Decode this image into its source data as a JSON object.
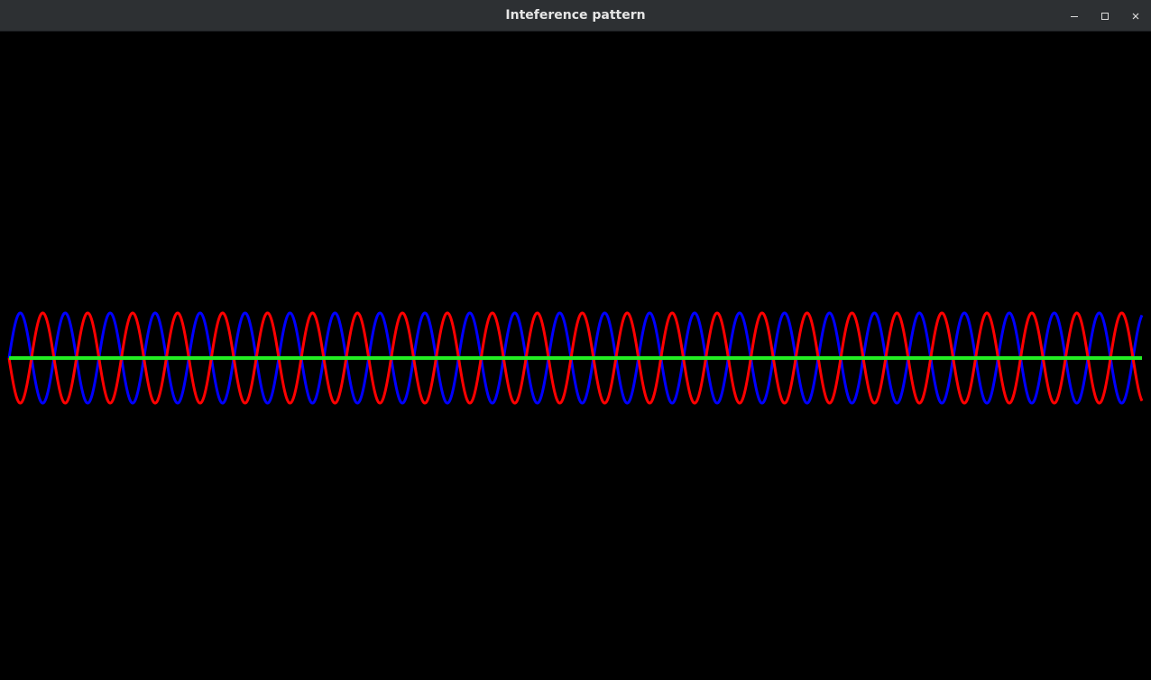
{
  "window": {
    "title": "Inteference pattern",
    "controls": [
      {
        "name": "minimize-button",
        "icon": "minimize-icon"
      },
      {
        "name": "maximize-button",
        "icon": "maximize-icon"
      },
      {
        "name": "close-button",
        "icon": "close-icon"
      }
    ]
  },
  "colors": {
    "titlebar": "#2d3033",
    "background": "#000000",
    "wave1": "#0000ff",
    "wave2": "#ff0000",
    "sum": "#22ee22"
  },
  "chart_data": {
    "type": "line",
    "title": "",
    "xlabel": "",
    "ylabel": "",
    "grid": false,
    "xlim": [
      0,
      12.6
    ],
    "ylim": [
      -7.5,
      7.5
    ],
    "series": [
      {
        "function": "sin",
        "amplitude": 1,
        "wavelength": 0.5,
        "phase": 0,
        "color": "#0000ff"
      },
      {
        "function": "sin",
        "amplitude": 1,
        "wavelength": 0.5,
        "phase": 3.14159,
        "color": "#ff0000"
      },
      {
        "function": "sum",
        "amplitude": 0,
        "color": "#22ee22"
      }
    ]
  }
}
